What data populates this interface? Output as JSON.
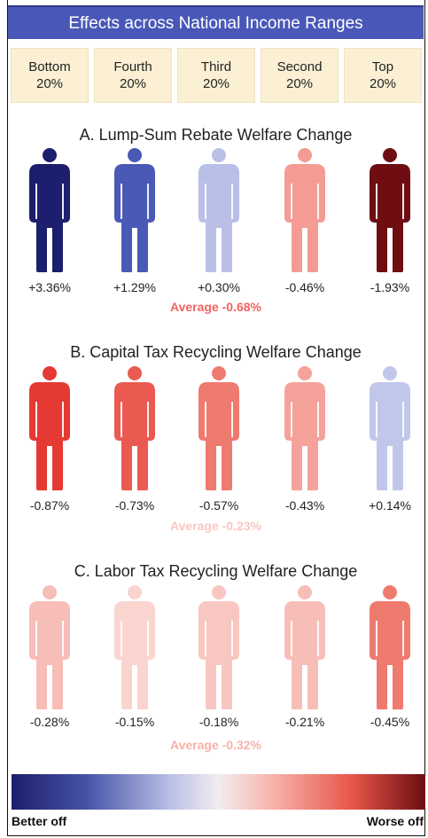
{
  "header": {
    "title": "Effects across National Income Ranges"
  },
  "quintiles": [
    {
      "line1": "Bottom",
      "line2": "20%"
    },
    {
      "line1": "Fourth",
      "line2": "20%"
    },
    {
      "line1": "Third",
      "line2": "20%"
    },
    {
      "line1": "Second",
      "line2": "20%"
    },
    {
      "line1": "Top",
      "line2": "20%"
    }
  ],
  "panels": [
    {
      "title": "A. Lump-Sum Rebate Welfare Change",
      "values": [
        "+3.36%",
        "+1.29%",
        "+0.30%",
        "-0.46%",
        "-1.93%"
      ],
      "colors": [
        "#1b1f6e",
        "#4a59b6",
        "#b9bfe6",
        "#f49b94",
        "#6e0e12"
      ],
      "average": "Average -0.68%",
      "average_color": "#f06560"
    },
    {
      "title": "B. Capital Tax Recycling Welfare Change",
      "values": [
        "-0.87%",
        "-0.73%",
        "-0.57%",
        "-0.43%",
        "+0.14%"
      ],
      "colors": [
        "#e53a33",
        "#ea5a50",
        "#ef7a6f",
        "#f4a29a",
        "#c1c7ea"
      ],
      "average": "Average -0.23%",
      "average_color": "#f9c7c2"
    },
    {
      "title": "C. Labor Tax Recycling Welfare Change",
      "values": [
        "-0.28%",
        "-0.15%",
        "-0.18%",
        "-0.21%",
        "-0.45%"
      ],
      "colors": [
        "#f7bdb7",
        "#fad5d0",
        "#f8c7c1",
        "#f7beb8",
        "#ef7a6e"
      ],
      "average": "Average -0.32%",
      "average_color": "#f6b1aa"
    }
  ],
  "legend": {
    "left_label": "Better off",
    "right_label": "Worse off"
  }
}
